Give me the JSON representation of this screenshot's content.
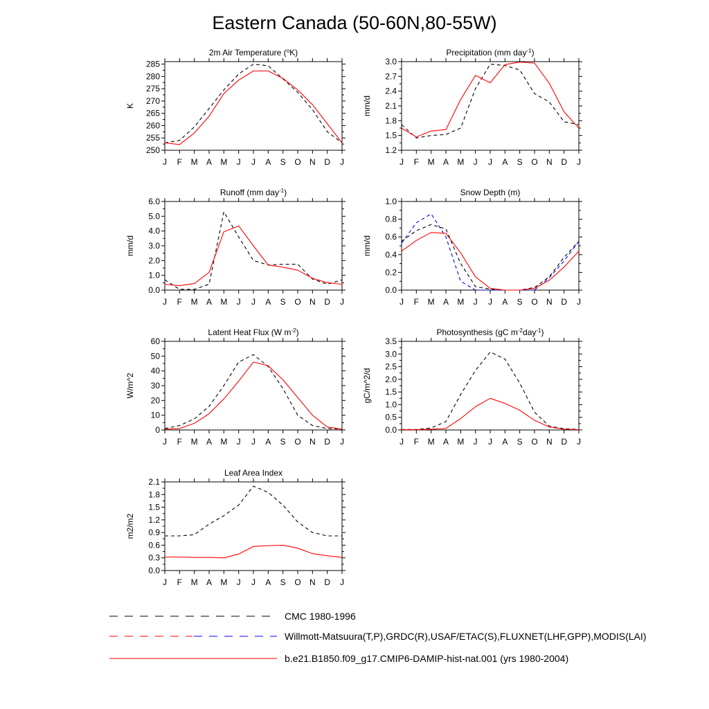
{
  "figure": {
    "title": "Eastern Canada (50-60N,80-55W)"
  },
  "colors": {
    "observed": "#000000",
    "observed_alt": "#0000ff",
    "model": "#ff0000"
  },
  "legend": {
    "entries": [
      {
        "label": "CMC 1980-1996",
        "style": "dashed",
        "color": "#000000"
      },
      {
        "label": "Willmott-Matsuura(T,P),GRDC(R),USAF/ETAC(S),FLUXNET(LHF,GPP),MODIS(LAI)",
        "style": "dashed",
        "colors": [
          "#ff0000",
          "#0000ff"
        ]
      },
      {
        "label": "b.e21.B1850.f09_g17.CMIP6-DAMIP-hist-nat.001 (yrs 1980-2004)",
        "style": "solid",
        "color": "#ff0000"
      }
    ]
  },
  "chart_data": [
    {
      "type": "line",
      "title": "2m Air Temperature (",
      "title_sup": "o",
      "title_after": "K)",
      "ylabel": "K",
      "x": [
        "J",
        "F",
        "M",
        "A",
        "M",
        "J",
        "J",
        "A",
        "S",
        "O",
        "N",
        "D",
        "J"
      ],
      "ylim": [
        250,
        286
      ],
      "yticks": [
        250,
        255,
        260,
        265,
        270,
        275,
        280,
        285
      ],
      "ytick_labels": [
        "250",
        "255",
        "260",
        "265",
        "270",
        "275",
        "280",
        "285"
      ],
      "series": [
        {
          "style": "dashed",
          "color": "#000000",
          "values": [
            253,
            254,
            259.5,
            267,
            274.5,
            281,
            285,
            284.3,
            279,
            273.5,
            266.5,
            257.5,
            253
          ]
        },
        {
          "style": "solid",
          "color": "#ff0000",
          "values": [
            253,
            252.3,
            257,
            263.8,
            273,
            278.5,
            282.2,
            282.2,
            279.2,
            274.5,
            268.5,
            260.8,
            253
          ]
        }
      ]
    },
    {
      "type": "line",
      "title": "Precipitation (mm day",
      "title_sup": "-1",
      "title_after": ")",
      "ylabel": "mm/d",
      "x": [
        "J",
        "F",
        "M",
        "A",
        "M",
        "J",
        "J",
        "A",
        "S",
        "O",
        "N",
        "D",
        "J"
      ],
      "ylim": [
        1.2,
        3.0
      ],
      "yticks": [
        1.2,
        1.5,
        1.8,
        2.1,
        2.4,
        2.7,
        3.0
      ],
      "ytick_labels": [
        "1.2",
        "1.5",
        "1.8",
        "2.1",
        "2.4",
        "2.7",
        "3.0"
      ],
      "series": [
        {
          "style": "dashed",
          "color": "#000000",
          "values": [
            1.72,
            1.45,
            1.5,
            1.52,
            1.65,
            2.45,
            2.95,
            2.92,
            2.83,
            2.35,
            2.18,
            1.78,
            1.72
          ]
        },
        {
          "style": "solid",
          "color": "#ff0000",
          "values": [
            1.65,
            1.47,
            1.59,
            1.62,
            2.23,
            2.72,
            2.57,
            2.94,
            2.99,
            2.97,
            2.56,
            1.98,
            1.65
          ]
        }
      ]
    },
    {
      "type": "line",
      "title": "Runoff (mm day",
      "title_sup": "-1",
      "title_after": ")",
      "ylabel": "mm/d",
      "x": [
        "J",
        "F",
        "M",
        "A",
        "M",
        "J",
        "J",
        "A",
        "S",
        "O",
        "N",
        "D",
        "J"
      ],
      "ylim": [
        0,
        6.0
      ],
      "yticks": [
        0,
        1,
        2,
        3,
        4,
        5,
        6
      ],
      "ytick_labels": [
        "0.0",
        "1.0",
        "2.0",
        "3.0",
        "4.0",
        "5.0",
        "6.0"
      ],
      "series": [
        {
          "style": "dashed",
          "color": "#000000",
          "values": [
            0.7,
            0.05,
            0.05,
            0.4,
            5.3,
            3.6,
            2.0,
            1.7,
            1.75,
            1.75,
            0.75,
            0.4,
            0.7
          ]
        },
        {
          "style": "solid",
          "color": "#ff0000",
          "values": [
            0.4,
            0.3,
            0.45,
            1.2,
            3.95,
            4.35,
            3.0,
            1.7,
            1.55,
            1.35,
            0.8,
            0.5,
            0.4
          ]
        }
      ]
    },
    {
      "type": "line",
      "title": "Snow Depth (m)",
      "title_sup": "",
      "title_after": "",
      "ylabel": "mm/d",
      "x": [
        "J",
        "F",
        "M",
        "A",
        "M",
        "J",
        "J",
        "A",
        "S",
        "O",
        "N",
        "D",
        "J"
      ],
      "ylim": [
        0,
        1.0
      ],
      "yticks": [
        0,
        0.2,
        0.4,
        0.6,
        0.8,
        1.0
      ],
      "ytick_labels": [
        "0.0",
        "0.2",
        "0.4",
        "0.6",
        "0.8",
        "1.0"
      ],
      "series": [
        {
          "style": "dashed",
          "color": "#000000",
          "values": [
            0.55,
            0.67,
            0.74,
            0.69,
            0.3,
            0.04,
            0.01,
            0.0,
            0.0,
            0.03,
            0.15,
            0.37,
            0.55
          ]
        },
        {
          "style": "dashed",
          "color": "#0000ff",
          "values": [
            0.53,
            0.76,
            0.86,
            0.6,
            0.1,
            0.0,
            0.0,
            0.0,
            0.0,
            0.0,
            0.14,
            0.33,
            0.55
          ]
        },
        {
          "style": "solid",
          "color": "#ff0000",
          "values": [
            0.44,
            0.56,
            0.65,
            0.64,
            0.42,
            0.15,
            0.02,
            0.0,
            0.0,
            0.02,
            0.11,
            0.26,
            0.44
          ]
        }
      ]
    },
    {
      "type": "line",
      "title": "Latent Heat Flux (W m",
      "title_sup": "-2",
      "title_after": ")",
      "ylabel": "W/m^2",
      "x": [
        "J",
        "F",
        "M",
        "A",
        "M",
        "J",
        "J",
        "A",
        "S",
        "O",
        "N",
        "D",
        "J"
      ],
      "ylim": [
        0,
        60
      ],
      "yticks": [
        0,
        10,
        20,
        30,
        40,
        50,
        60
      ],
      "ytick_labels": [
        "0",
        "10",
        "20",
        "30",
        "40",
        "50",
        "60"
      ],
      "series": [
        {
          "style": "dashed",
          "color": "#000000",
          "values": [
            1,
            3,
            7.5,
            16,
            30,
            46,
            51,
            43,
            28,
            10,
            3,
            1,
            0.5
          ]
        },
        {
          "style": "solid",
          "color": "#ff0000",
          "values": [
            0.5,
            1,
            4.5,
            11,
            21,
            33,
            46,
            43.5,
            34,
            22,
            10,
            2,
            0.5
          ]
        }
      ]
    },
    {
      "type": "line",
      "title": "Photosynthesis (gC m",
      "title_sup": "-2",
      "title_after": "day",
      "title_sup2": "-1",
      "title_after2": ")",
      "ylabel": "gC/m^2/d",
      "x": [
        "J",
        "F",
        "M",
        "A",
        "M",
        "J",
        "J",
        "A",
        "S",
        "O",
        "N",
        "D",
        "J"
      ],
      "ylim": [
        0,
        3.5
      ],
      "yticks": [
        0,
        0.5,
        1,
        1.5,
        2,
        2.5,
        3,
        3.5
      ],
      "ytick_labels": [
        "0.0",
        "0.5",
        "1.0",
        "1.5",
        "2.0",
        "2.5",
        "3.0",
        "3.5"
      ],
      "series": [
        {
          "style": "dashed",
          "color": "#000000",
          "values": [
            0.02,
            0.02,
            0.08,
            0.33,
            1.4,
            2.35,
            3.08,
            2.8,
            1.85,
            0.7,
            0.15,
            0.05,
            0.02
          ]
        },
        {
          "style": "solid",
          "color": "#ff0000",
          "values": [
            0.01,
            0.01,
            0.03,
            0.06,
            0.45,
            0.92,
            1.25,
            1.05,
            0.78,
            0.38,
            0.12,
            0.03,
            0.01
          ]
        }
      ]
    },
    {
      "type": "line",
      "title": "Leaf Area Index",
      "title_sup": "",
      "title_after": "",
      "ylabel": "m2/m2",
      "x": [
        "J",
        "F",
        "M",
        "A",
        "M",
        "J",
        "J",
        "A",
        "S",
        "O",
        "N",
        "D",
        "J"
      ],
      "ylim": [
        0,
        2.1
      ],
      "yticks": [
        0,
        0.3,
        0.6,
        0.9,
        1.2,
        1.5,
        1.8,
        2.1
      ],
      "ytick_labels": [
        "0.0",
        "0.3",
        "0.6",
        "0.9",
        "1.2",
        "1.5",
        "1.8",
        "2.1"
      ],
      "series": [
        {
          "style": "dashed",
          "color": "#000000",
          "values": [
            0.82,
            0.82,
            0.85,
            1.1,
            1.3,
            1.55,
            2.0,
            1.85,
            1.55,
            1.15,
            0.9,
            0.82,
            0.82
          ]
        },
        {
          "style": "solid",
          "color": "#ff0000",
          "values": [
            0.32,
            0.32,
            0.31,
            0.31,
            0.3,
            0.39,
            0.57,
            0.59,
            0.6,
            0.53,
            0.4,
            0.35,
            0.31
          ]
        }
      ]
    }
  ]
}
